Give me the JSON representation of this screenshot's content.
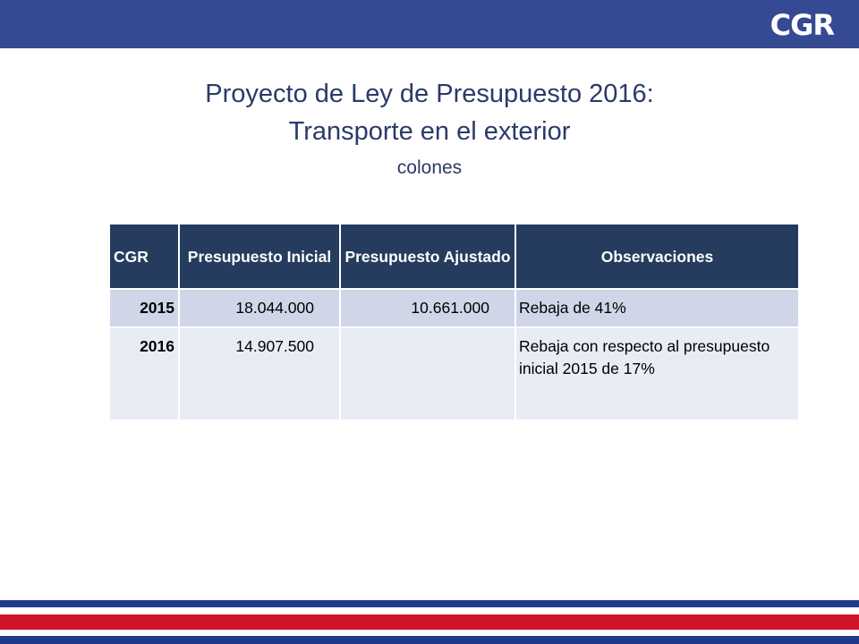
{
  "header": {
    "logo_text": "CGR",
    "bar_color": "#364a93"
  },
  "title": {
    "line1": "Proyecto de Ley de Presupuesto 2016:",
    "line2": "Transporte en el exterior",
    "subtitle": "colones"
  },
  "table": {
    "columns": [
      "CGR",
      "Presupuesto Inicial",
      "Presupuesto Ajustado",
      "Observaciones"
    ],
    "rows": [
      {
        "year": "2015",
        "inicial": "18.044.000",
        "ajustado": "10.661.000",
        "observaciones": "Rebaja de 41%"
      },
      {
        "year": "2016",
        "inicial": "14.907.500",
        "ajustado": "",
        "observaciones": "Rebaja con respecto al presupuesto inicial 2015 de 17%"
      }
    ],
    "header_color": "#253c5e",
    "row_colors": [
      "#cfd6e8",
      "#e8ecf4"
    ]
  },
  "footer": {
    "stripe_colors": [
      "#1f3a8a",
      "#ffffff",
      "#d0142c",
      "#ffffff",
      "#1f3a8a"
    ]
  }
}
